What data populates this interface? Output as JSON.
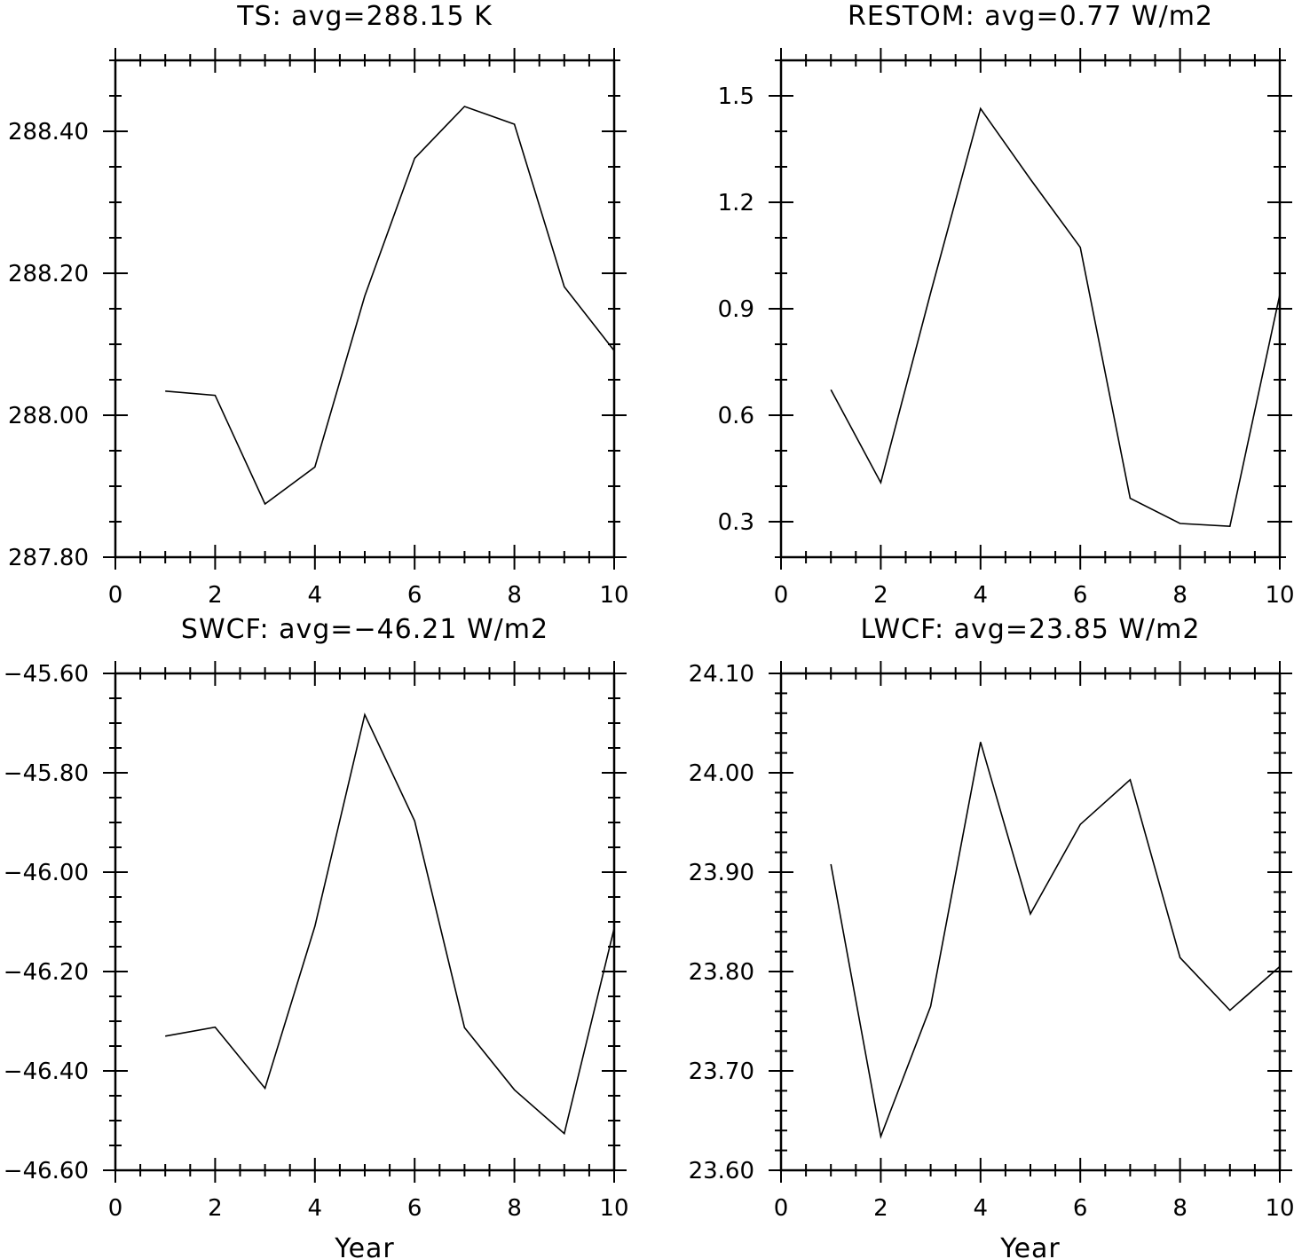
{
  "chart_data": [
    {
      "type": "line",
      "title": "TS: avg=288.15 K",
      "xlabel": "",
      "ylabel": "",
      "xlim": [
        0,
        10
      ],
      "ylim": [
        287.8,
        288.5
      ],
      "x_ticks": [
        0,
        2,
        4,
        6,
        8,
        10
      ],
      "x_tick_labels": [
        "0",
        "2",
        "4",
        "6",
        "8",
        "10"
      ],
      "y_ticks": [
        287.8,
        288.0,
        288.2,
        288.4
      ],
      "y_tick_labels": [
        "287.80",
        "288.00",
        "288.20",
        "288.40"
      ],
      "y_minor_step": 0.05,
      "series": [
        {
          "x": [
            1,
            2,
            3,
            4,
            5,
            6,
            7,
            8,
            9,
            10
          ],
          "values": [
            288.034,
            288.028,
            287.875,
            287.927,
            288.168,
            288.362,
            288.435,
            288.41,
            288.181,
            288.091
          ]
        }
      ]
    },
    {
      "type": "line",
      "title": "RESTOM: avg=0.77 W/m2",
      "xlabel": "",
      "ylabel": "",
      "xlim": [
        0,
        10
      ],
      "ylim": [
        0.2,
        1.6
      ],
      "x_ticks": [
        0,
        2,
        4,
        6,
        8,
        10
      ],
      "x_tick_labels": [
        "0",
        "2",
        "4",
        "6",
        "8",
        "10"
      ],
      "y_ticks": [
        0.3,
        0.6,
        0.9,
        1.2,
        1.5
      ],
      "y_tick_labels": [
        "0.3",
        "0.6",
        "0.9",
        "1.2",
        "1.5"
      ],
      "y_minor_step": 0.1,
      "series": [
        {
          "x": [
            1,
            2,
            3,
            4,
            5,
            6,
            7,
            8,
            9,
            10
          ],
          "values": [
            0.672,
            0.41,
            0.945,
            1.464,
            1.265,
            1.073,
            0.366,
            0.295,
            0.287,
            0.94
          ]
        }
      ]
    },
    {
      "type": "line",
      "title": "SWCF: avg=−46.21 W/m2",
      "xlabel": "Year",
      "ylabel": "",
      "xlim": [
        0,
        10
      ],
      "ylim": [
        -46.6,
        -45.6
      ],
      "x_ticks": [
        0,
        2,
        4,
        6,
        8,
        10
      ],
      "x_tick_labels": [
        "0",
        "2",
        "4",
        "6",
        "8",
        "10"
      ],
      "y_ticks": [
        -46.6,
        -46.4,
        -46.2,
        -46.0,
        -45.8,
        -45.6
      ],
      "y_tick_labels": [
        "−46.60",
        "−46.40",
        "−46.20",
        "−46.00",
        "−45.80",
        "−45.60"
      ],
      "y_minor_step": 0.05,
      "series": [
        {
          "x": [
            1,
            2,
            3,
            4,
            5,
            6,
            7,
            8,
            9,
            10
          ],
          "values": [
            -46.33,
            -46.312,
            -46.435,
            -46.109,
            -45.683,
            -45.897,
            -46.313,
            -46.438,
            -46.526,
            -46.113
          ]
        }
      ]
    },
    {
      "type": "line",
      "title": "LWCF: avg=23.85 W/m2",
      "xlabel": "Year",
      "ylabel": "",
      "xlim": [
        0,
        10
      ],
      "ylim": [
        23.6,
        24.1
      ],
      "x_ticks": [
        0,
        2,
        4,
        6,
        8,
        10
      ],
      "x_tick_labels": [
        "0",
        "2",
        "4",
        "6",
        "8",
        "10"
      ],
      "y_ticks": [
        23.6,
        23.7,
        23.8,
        23.9,
        24.0,
        24.1
      ],
      "y_tick_labels": [
        "23.60",
        "23.70",
        "23.80",
        "23.90",
        "24.00",
        "24.10"
      ],
      "y_minor_step": 0.02,
      "series": [
        {
          "x": [
            1,
            2,
            3,
            4,
            5,
            6,
            7,
            8,
            9,
            10
          ],
          "values": [
            23.908,
            23.634,
            23.765,
            24.031,
            23.858,
            23.948,
            23.993,
            23.814,
            23.761,
            23.805
          ]
        }
      ]
    }
  ]
}
